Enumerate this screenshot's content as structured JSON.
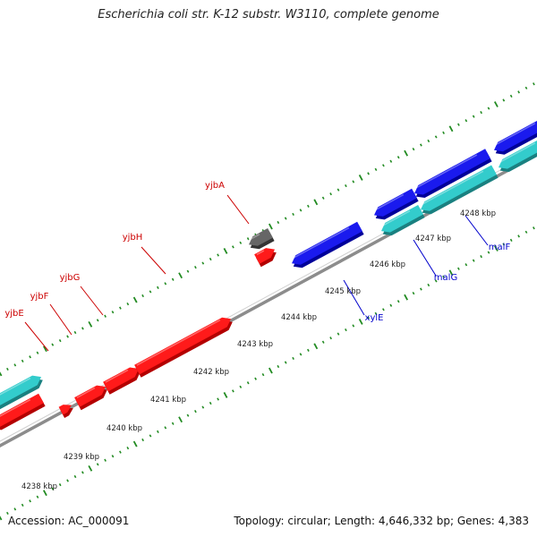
{
  "title": "Escherichia coli str. K-12 substr. W3110, complete genome",
  "footer": {
    "accession": "Accession: AC_000091",
    "summary": "Topology: circular; Length: 4,646,332 bp; Genes: 4,383"
  },
  "colors": {
    "red": "#ff1a1a",
    "red_side": "#b30000",
    "blue": "#1a1aee",
    "blue_side": "#000099",
    "cyan": "#33cccc",
    "cyan_side": "#1a8080",
    "gray": "#666666",
    "gray_side": "#333333",
    "backbone": "#8c8c8c",
    "tick": "#228b22",
    "label_red": "#cc0000",
    "label_blue": "#0000cc"
  },
  "scale_labels": [
    "4238 kbp",
    "4239 kbp",
    "4240 kbp",
    "4241 kbp",
    "4242 kbp",
    "4243 kbp",
    "4244 kbp",
    "4245 kbp",
    "4246 kbp",
    "4247 kbp",
    "4248 kbp"
  ],
  "gene_labels": {
    "yjbA": "yjbA",
    "yjbH": "yjbH",
    "yjbG": "yjbG",
    "yjbF": "yjbF",
    "yjbE": "yjbE",
    "xylE": "xylE",
    "malG": "malG",
    "malF": "malF"
  }
}
